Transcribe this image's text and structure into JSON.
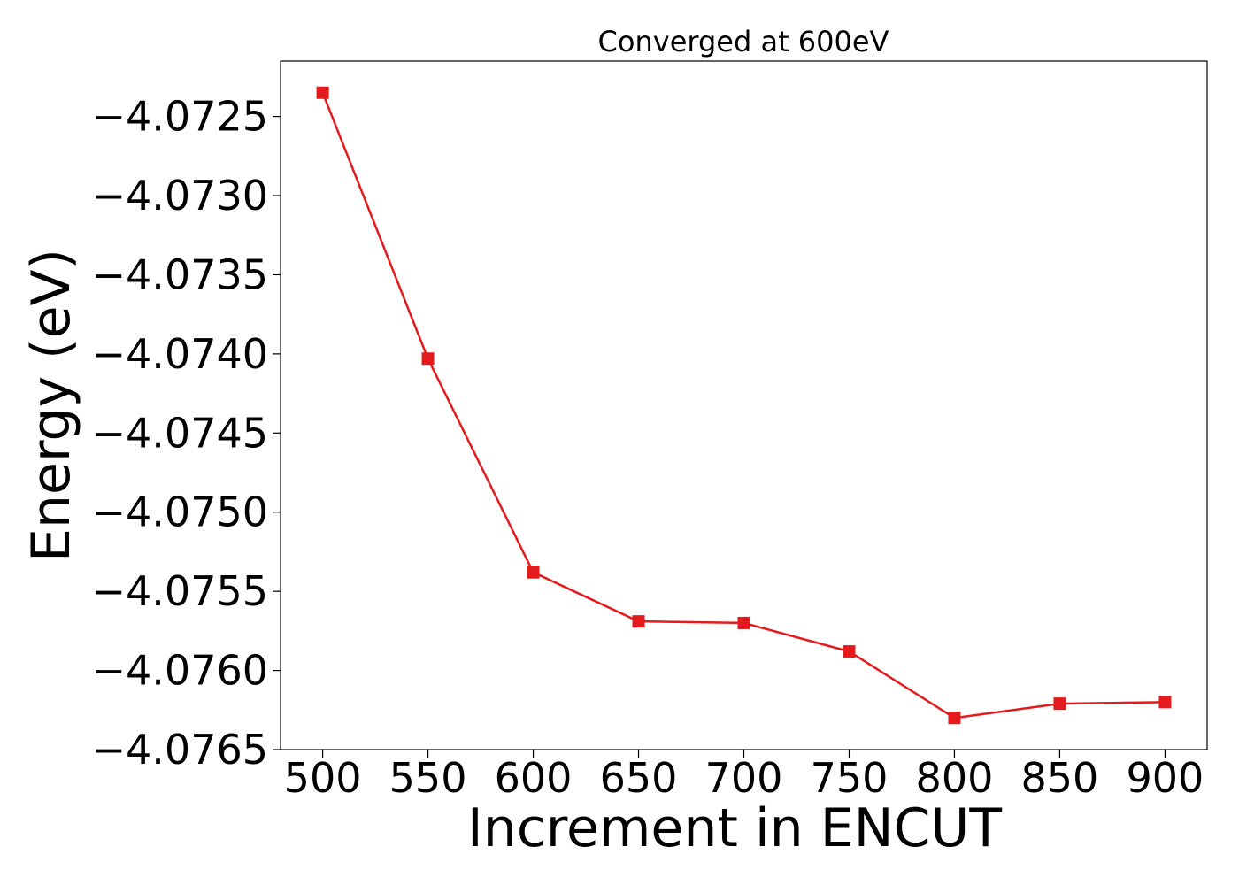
{
  "chart_data": {
    "type": "line",
    "title": "Converged at 600eV",
    "xlabel": "Increment in ENCUT",
    "ylabel": "Energy (eV)",
    "x": [
      500,
      550,
      600,
      650,
      700,
      750,
      800,
      850,
      900
    ],
    "series": [
      {
        "values": [
          -4.07235,
          -4.07403,
          -4.07538,
          -4.07569,
          -4.0757,
          -4.07588,
          -4.0763,
          -4.07621,
          -4.0762
        ],
        "color": "#e41a1c",
        "marker": "square"
      }
    ],
    "xticks": [
      500,
      550,
      600,
      650,
      700,
      750,
      800,
      850,
      900
    ],
    "yticks": [
      -4.0765,
      -4.076,
      -4.0755,
      -4.075,
      -4.0745,
      -4.074,
      -4.0735,
      -4.073,
      -4.0725
    ],
    "ytick_labels": [
      "−4.0765",
      "−4.0760",
      "−4.0755",
      "−4.0750",
      "−4.0745",
      "−4.0740",
      "−4.0735",
      "−4.0730",
      "−4.0725"
    ],
    "xlim": [
      480,
      920
    ],
    "ylim": [
      -4.0765,
      -4.07215
    ],
    "grid": false,
    "legend": "none"
  }
}
